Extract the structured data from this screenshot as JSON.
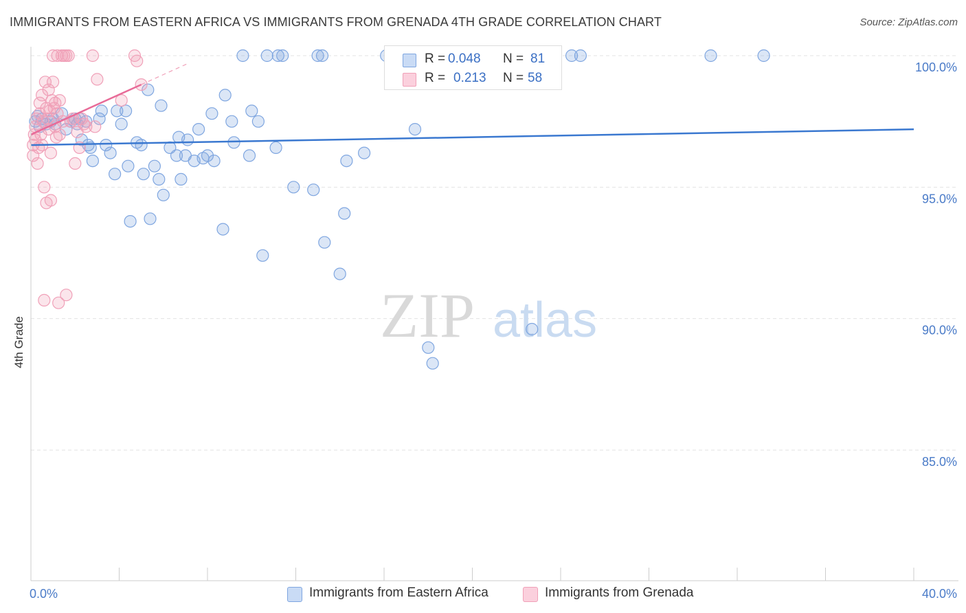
{
  "title": "IMMIGRANTS FROM EASTERN AFRICA VS IMMIGRANTS FROM GRENADA 4TH GRADE CORRELATION CHART",
  "source": "Source: ZipAtlas.com",
  "watermark": {
    "zip": "ZIP",
    "atlas": "atlas"
  },
  "legend": {
    "rows": [
      {
        "r_label": "R =",
        "r_value": "0.048",
        "n_label": "N =",
        "n_value": "81",
        "color": "#7fa6e0"
      },
      {
        "r_label": "R =",
        "r_value": "0.213",
        "n_label": "N =",
        "n_value": "58",
        "color": "#f0a0b8"
      }
    ]
  },
  "bottom_legend": [
    {
      "label": "Immigrants from Eastern Africa",
      "color": "#7fa6e0"
    },
    {
      "label": "Immigrants from Grenada",
      "color": "#f0a0b8"
    }
  ],
  "chart_data": {
    "type": "scatter",
    "title": "IMMIGRANTS FROM EASTERN AFRICA VS IMMIGRANTS FROM GRENADA 4TH GRADE CORRELATION CHART",
    "xlabel": "",
    "ylabel": "4th Grade",
    "xlim": [
      0,
      40
    ],
    "ylim": [
      80.5,
      100.6
    ],
    "x_tick_labels": [
      {
        "value": 0,
        "label": "0.0%"
      },
      {
        "value": 40,
        "label": "40.0%"
      }
    ],
    "y_tick_labels": [
      {
        "value": 100,
        "label": "100.0%"
      },
      {
        "value": 95,
        "label": "95.0%"
      },
      {
        "value": 90,
        "label": "90.0%"
      },
      {
        "value": 85,
        "label": "85.0%"
      }
    ],
    "grid": "horizontal dashed",
    "legend_position": "top-center",
    "series": [
      {
        "name": "Immigrants from Eastern Africa",
        "color": "#7fa6e0",
        "trend": {
          "x": [
            0,
            40
          ],
          "y": [
            96.6,
            97.2
          ]
        },
        "points": [
          [
            0.2,
            97.5
          ],
          [
            0.3,
            97.7
          ],
          [
            0.4,
            97.3
          ],
          [
            0.5,
            97.6
          ],
          [
            0.7,
            97.4
          ],
          [
            0.9,
            97.5
          ],
          [
            1.0,
            97.6
          ],
          [
            1.1,
            97.4
          ],
          [
            1.4,
            97.8
          ],
          [
            1.6,
            97.2
          ],
          [
            1.8,
            97.5
          ],
          [
            2.0,
            97.6
          ],
          [
            2.1,
            97.4
          ],
          [
            2.2,
            97.6
          ],
          [
            2.3,
            96.8
          ],
          [
            2.5,
            97.5
          ],
          [
            2.6,
            96.6
          ],
          [
            2.7,
            96.5
          ],
          [
            2.8,
            96.0
          ],
          [
            3.1,
            97.6
          ],
          [
            3.2,
            97.9
          ],
          [
            3.4,
            96.6
          ],
          [
            3.6,
            96.3
          ],
          [
            3.8,
            95.5
          ],
          [
            3.9,
            97.9
          ],
          [
            4.1,
            97.4
          ],
          [
            4.3,
            97.9
          ],
          [
            4.4,
            95.8
          ],
          [
            4.5,
            93.7
          ],
          [
            4.8,
            96.7
          ],
          [
            5.0,
            96.6
          ],
          [
            5.1,
            95.5
          ],
          [
            5.3,
            98.7
          ],
          [
            5.4,
            93.8
          ],
          [
            5.6,
            95.8
          ],
          [
            5.8,
            95.3
          ],
          [
            5.9,
            98.1
          ],
          [
            6.0,
            94.7
          ],
          [
            6.3,
            96.5
          ],
          [
            6.6,
            96.2
          ],
          [
            6.7,
            96.9
          ],
          [
            6.8,
            95.3
          ],
          [
            7.0,
            96.2
          ],
          [
            7.1,
            96.8
          ],
          [
            7.4,
            96.0
          ],
          [
            7.6,
            97.2
          ],
          [
            7.8,
            96.1
          ],
          [
            8.0,
            96.2
          ],
          [
            8.2,
            97.8
          ],
          [
            8.3,
            96.0
          ],
          [
            8.7,
            93.4
          ],
          [
            8.8,
            98.5
          ],
          [
            9.1,
            97.5
          ],
          [
            9.2,
            96.7
          ],
          [
            9.6,
            100.0
          ],
          [
            9.9,
            96.2
          ],
          [
            10.0,
            97.9
          ],
          [
            10.3,
            97.5
          ],
          [
            10.5,
            92.4
          ],
          [
            10.7,
            100.0
          ],
          [
            11.1,
            96.5
          ],
          [
            11.2,
            100.0
          ],
          [
            11.4,
            100.0
          ],
          [
            11.9,
            95.0
          ],
          [
            12.8,
            94.9
          ],
          [
            13.0,
            100.0
          ],
          [
            13.2,
            100.0
          ],
          [
            13.3,
            92.9
          ],
          [
            14.0,
            91.7
          ],
          [
            14.2,
            94.0
          ],
          [
            14.3,
            96.0
          ],
          [
            15.1,
            96.3
          ],
          [
            16.1,
            100.0
          ],
          [
            17.4,
            97.2
          ],
          [
            18.0,
            88.9
          ],
          [
            18.2,
            88.3
          ],
          [
            22.7,
            89.6
          ],
          [
            24.5,
            100.0
          ],
          [
            24.9,
            100.0
          ],
          [
            30.8,
            100.0
          ],
          [
            33.2,
            100.0
          ]
        ]
      },
      {
        "name": "Immigrants from Grenada",
        "color": "#f0a0b8",
        "trend": {
          "x": [
            0,
            5
          ],
          "y": [
            97.0,
            98.9
          ]
        },
        "points": [
          [
            0.1,
            96.6
          ],
          [
            0.1,
            96.2
          ],
          [
            0.15,
            97.0
          ],
          [
            0.2,
            96.8
          ],
          [
            0.2,
            97.3
          ],
          [
            0.25,
            97.6
          ],
          [
            0.3,
            95.9
          ],
          [
            0.35,
            96.5
          ],
          [
            0.4,
            98.2
          ],
          [
            0.4,
            97.8
          ],
          [
            0.45,
            97.0
          ],
          [
            0.5,
            98.5
          ],
          [
            0.5,
            96.6
          ],
          [
            0.55,
            97.5
          ],
          [
            0.6,
            90.7
          ],
          [
            0.6,
            95.0
          ],
          [
            0.65,
            99.0
          ],
          [
            0.7,
            98.0
          ],
          [
            0.7,
            94.4
          ],
          [
            0.75,
            97.6
          ],
          [
            0.8,
            97.2
          ],
          [
            0.8,
            98.7
          ],
          [
            0.85,
            97.9
          ],
          [
            0.9,
            96.3
          ],
          [
            0.9,
            94.5
          ],
          [
            0.95,
            98.3
          ],
          [
            1.0,
            99.0
          ],
          [
            1.0,
            100.0
          ],
          [
            1.05,
            98.0
          ],
          [
            1.1,
            98.2
          ],
          [
            1.1,
            97.3
          ],
          [
            1.15,
            96.9
          ],
          [
            1.2,
            97.8
          ],
          [
            1.2,
            100.0
          ],
          [
            1.25,
            90.6
          ],
          [
            1.3,
            98.3
          ],
          [
            1.3,
            97.0
          ],
          [
            1.4,
            100.0
          ],
          [
            1.45,
            97.5
          ],
          [
            1.5,
            100.0
          ],
          [
            1.6,
            100.0
          ],
          [
            1.6,
            90.9
          ],
          [
            1.7,
            100.0
          ],
          [
            1.8,
            97.5
          ],
          [
            1.9,
            97.6
          ],
          [
            2.0,
            95.9
          ],
          [
            2.1,
            97.1
          ],
          [
            2.2,
            96.5
          ],
          [
            2.3,
            97.6
          ],
          [
            2.4,
            97.4
          ],
          [
            2.5,
            97.3
          ],
          [
            2.8,
            100.0
          ],
          [
            2.9,
            97.3
          ],
          [
            3.0,
            99.1
          ],
          [
            4.1,
            98.3
          ],
          [
            4.7,
            100.0
          ],
          [
            4.8,
            99.8
          ],
          [
            5.0,
            98.9
          ]
        ]
      }
    ]
  }
}
